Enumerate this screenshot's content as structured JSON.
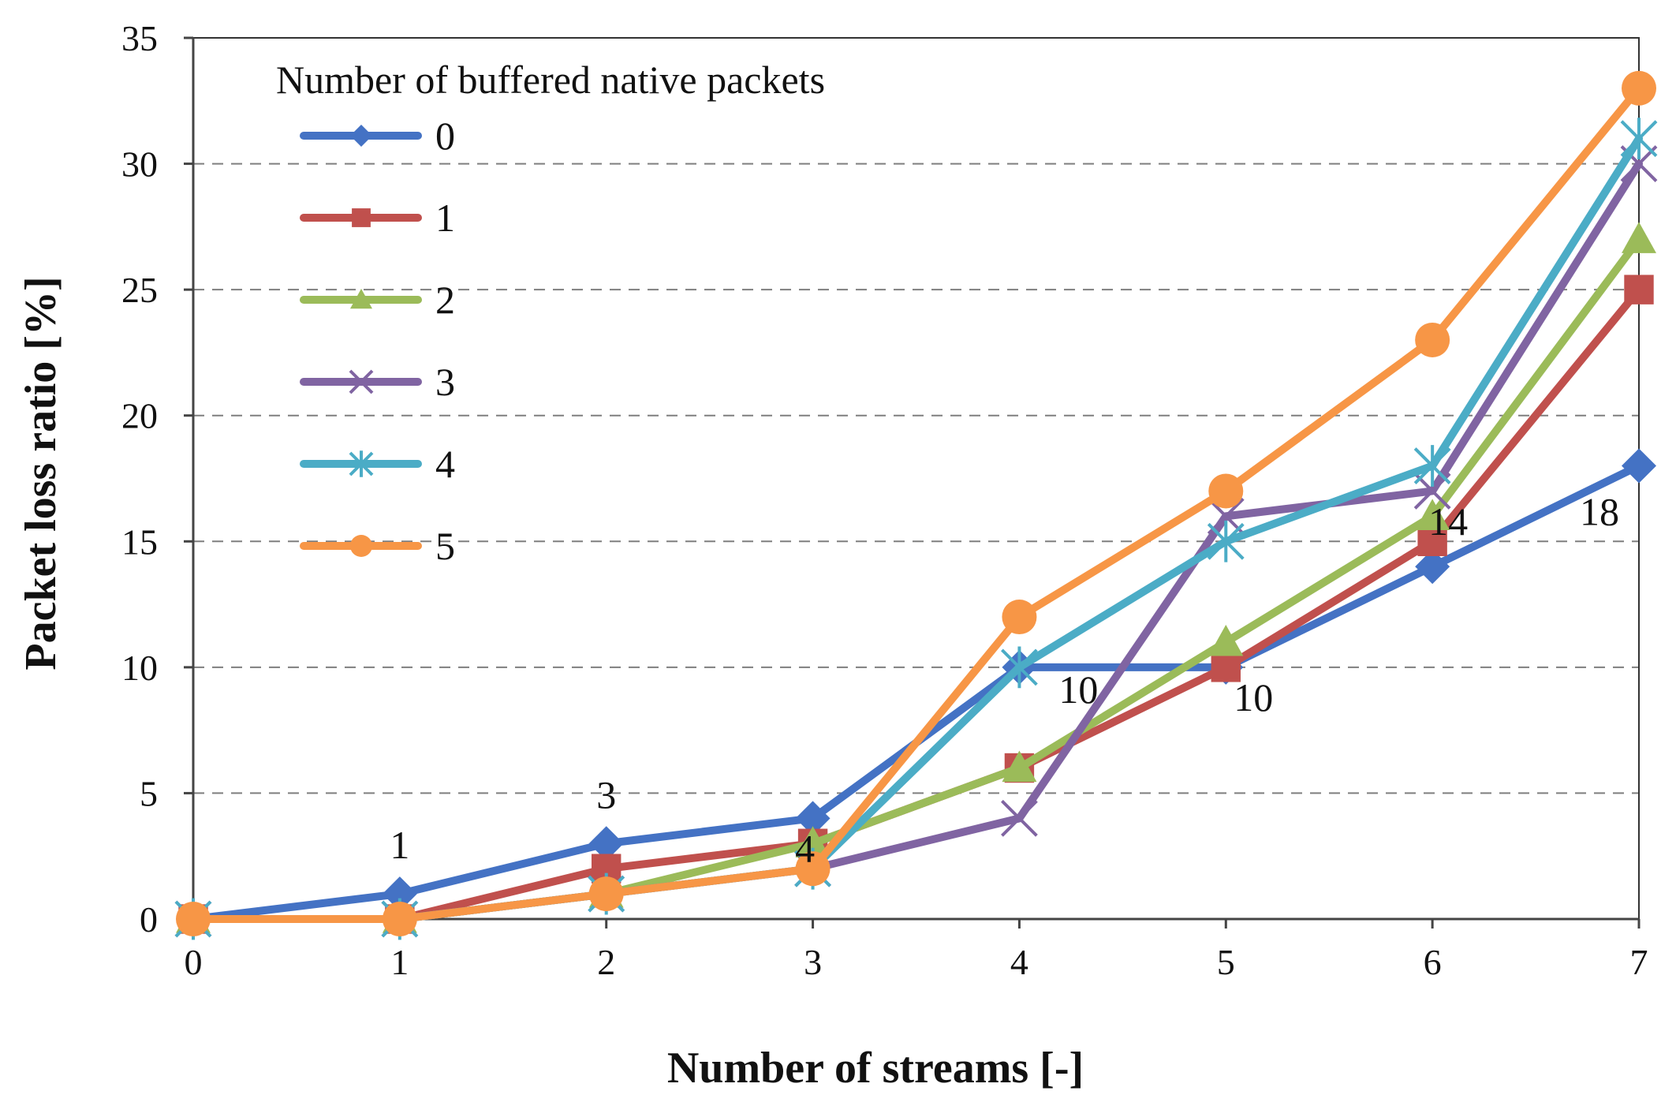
{
  "chart_data": {
    "type": "line",
    "title": "",
    "xlabel": "Number of streams [-]",
    "ylabel": "Packet loss ratio [%]",
    "x": [
      0,
      1,
      2,
      3,
      4,
      5,
      6,
      7
    ],
    "xlim": [
      0,
      7
    ],
    "ylim": [
      0,
      35
    ],
    "xticks": [
      0,
      1,
      2,
      3,
      4,
      5,
      6,
      7
    ],
    "yticks": [
      0,
      5,
      10,
      15,
      20,
      25,
      30,
      35
    ],
    "grid": "horizontal dashed",
    "legend": {
      "title": "Number of buffered native packets",
      "placement": "top-left"
    },
    "series": [
      {
        "name": "0",
        "color": "#4472c4",
        "marker": "diamond",
        "values": [
          0,
          1,
          3,
          4,
          10,
          10,
          14,
          18
        ]
      },
      {
        "name": "1",
        "color": "#c0504d",
        "marker": "square",
        "values": [
          0,
          0,
          2,
          3,
          6,
          10,
          15,
          25
        ]
      },
      {
        "name": "2",
        "color": "#9bbb59",
        "marker": "triangle",
        "values": [
          0,
          0,
          1,
          3,
          6,
          11,
          16,
          27
        ]
      },
      {
        "name": "3",
        "color": "#8064a2",
        "marker": "x",
        "values": [
          0,
          0,
          1,
          2,
          4,
          16,
          17,
          30
        ]
      },
      {
        "name": "4",
        "color": "#4bacc6",
        "marker": "star",
        "values": [
          0,
          0,
          1,
          2,
          10,
          15,
          18,
          31
        ]
      },
      {
        "name": "5",
        "color": "#f79646",
        "marker": "circle",
        "values": [
          0,
          0,
          1,
          2,
          12,
          17,
          23,
          33
        ]
      }
    ],
    "annotations": [
      {
        "series": "0",
        "x": 1,
        "text": "1"
      },
      {
        "series": "0",
        "x": 2,
        "text": "3"
      },
      {
        "series": "0",
        "x": 3,
        "text": "4"
      },
      {
        "series": "0",
        "x": 4,
        "text": "10"
      },
      {
        "series": "0",
        "x": 5,
        "text": "10"
      },
      {
        "series": "0",
        "x": 6,
        "text": "14"
      },
      {
        "series": "0",
        "x": 7,
        "text": "18"
      }
    ]
  }
}
